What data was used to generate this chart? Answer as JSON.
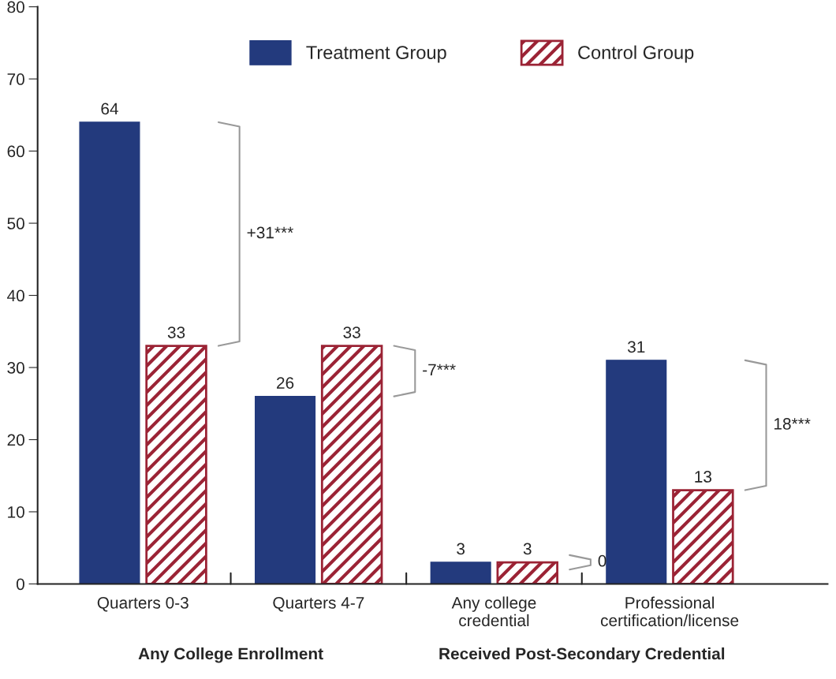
{
  "chart_data": {
    "type": "bar",
    "categories": [
      "Quarters 0-3",
      "Quarters 4-7",
      "Any college\ncredential",
      "Professional\ncertification/license"
    ],
    "series": [
      {
        "name": "Treatment Group",
        "color": "#233a7d",
        "values": [
          64,
          26,
          3,
          31
        ]
      },
      {
        "name": "Control Group",
        "color": "#9b2335",
        "values": [
          33,
          33,
          3,
          13
        ]
      }
    ],
    "ylim": [
      0,
      80
    ],
    "yticks": [
      0,
      10,
      20,
      30,
      40,
      50,
      60,
      70,
      80
    ],
    "data_labels": true,
    "legend": "top",
    "grid": false,
    "annotations": [
      "+31***",
      "-7***",
      "0",
      "18***",
      "Any College Enrollment",
      "Received Post-Secondary Credential"
    ]
  }
}
